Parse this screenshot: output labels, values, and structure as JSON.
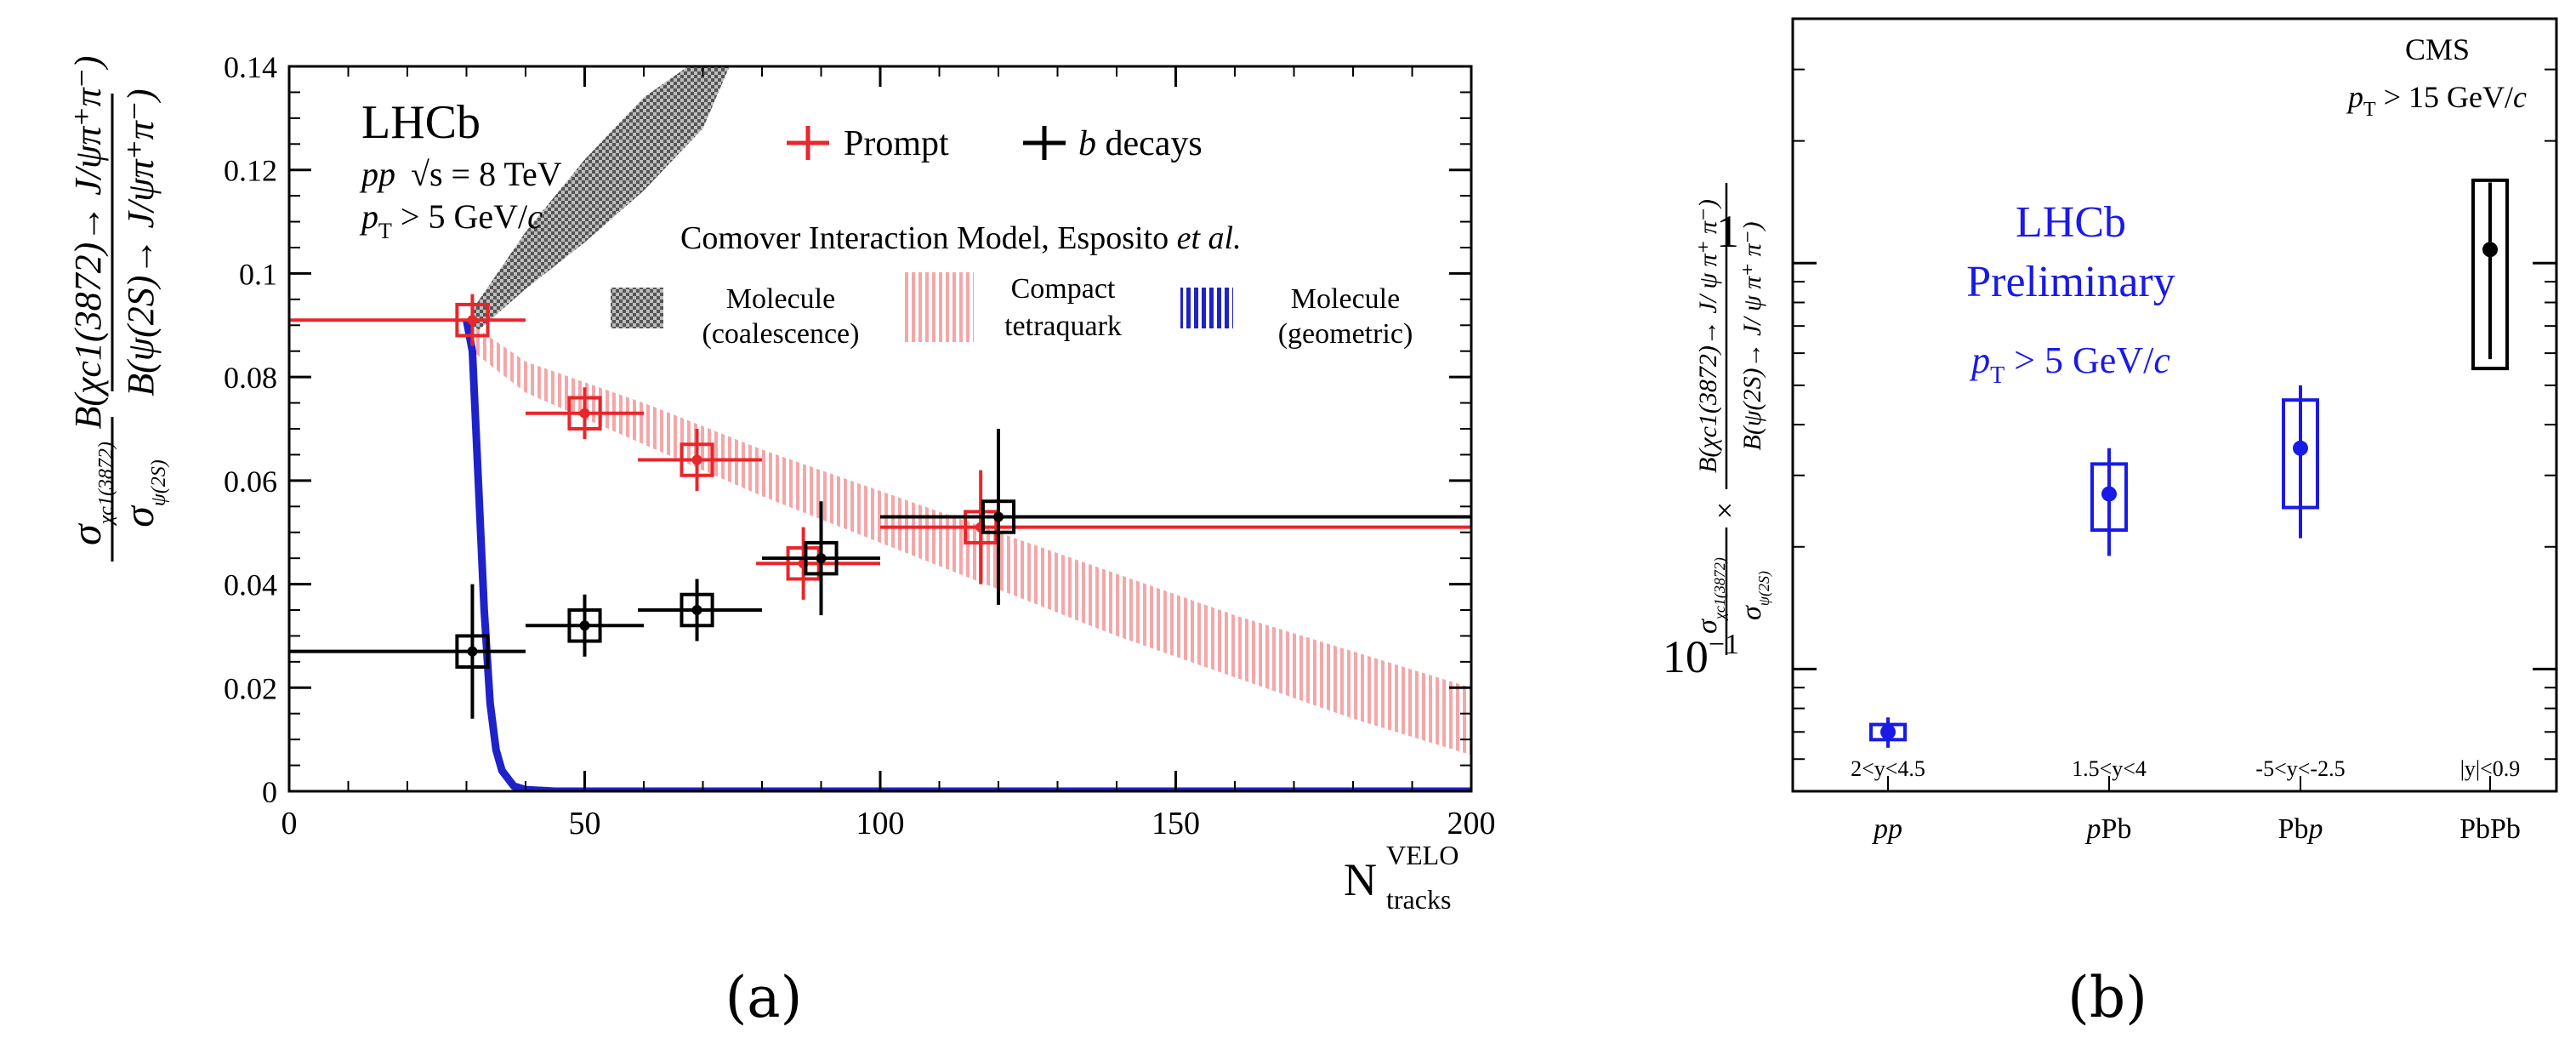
{
  "chart_data": [
    {
      "panel": "a",
      "type": "scatter",
      "experiment": "LHCb",
      "conditions": [
        "pp",
        "√s = 8 TeV",
        "p_T > 5 GeV/c"
      ],
      "title_lines": {
        "experiment": "LHCb",
        "system": "pp",
        "energy": "√s = 8 TeV",
        "pt_prefix": "p",
        "pt_sub": "T",
        "pt_rest": " > 5 GeV/",
        "pt_c": "c"
      },
      "xlabel": "N",
      "xlabel_sup": "VELO",
      "xlabel_sub": "tracks",
      "ylabel_left_num": "σ",
      "ylabel_left_num_sub": "χc1(3872)",
      "ylabel_left_den": "σ",
      "ylabel_left_den_sub": "ψ(2S)",
      "ylabel_right_num": "B(χc1(3872)→ J/ψπ⁺π⁻)",
      "ylabel_right_den": "B(ψ(2S)→ J/ψπ⁺π⁻)",
      "xlim": [
        0,
        200
      ],
      "ylim": [
        0,
        0.14
      ],
      "xticks": [
        0,
        50,
        100,
        150,
        200
      ],
      "xtick_labels": [
        "0",
        "50",
        "100",
        "150",
        "200"
      ],
      "yticks": [
        0,
        0.02,
        0.04,
        0.06,
        0.08,
        0.1,
        0.12,
        0.14
      ],
      "ytick_labels": [
        "0",
        "0.02",
        "0.04",
        "0.06",
        "0.08",
        "0.1",
        "0.12",
        "0.14"
      ],
      "legend": {
        "prompt": "Prompt",
        "bdecays_italic": "b",
        "bdecays_rest": " decays",
        "model_title": "Comover Interaction Model, Esposito ",
        "model_title_italic": "et al.",
        "coalescence_1": "Molecule",
        "coalescence_2": "(coalescence)",
        "tetraquark_1": "Compact",
        "tetraquark_2": "tetraquark",
        "geometric_1": "Molecule",
        "geometric_2": "(geometric)"
      },
      "series": [
        {
          "name": "Prompt",
          "color": "#e8262b",
          "x": [
            31,
            50,
            69,
            87,
            117
          ],
          "xerr_low": [
            31,
            10,
            10,
            8,
            17
          ],
          "xerr_high": [
            9,
            10,
            11,
            13,
            83
          ],
          "y": [
            0.091,
            0.073,
            0.064,
            0.044,
            0.051
          ],
          "yerr_stat": [
            0.005,
            0.005,
            0.006,
            0.007,
            0.011
          ],
          "syst_box": 0.003
        },
        {
          "name": "b decays",
          "color": "#000000",
          "x": [
            31,
            50,
            69,
            90,
            120
          ],
          "xerr_low": [
            31,
            10,
            10,
            10,
            20
          ],
          "xerr_high": [
            9,
            10,
            11,
            10,
            80
          ],
          "y": [
            0.027,
            0.032,
            0.035,
            0.045,
            0.053
          ],
          "yerr_stat": [
            0.013,
            0.006,
            0.006,
            0.011,
            0.017
          ],
          "syst_box": 0.003
        }
      ],
      "bands": [
        {
          "name": "Molecule (coalescence)",
          "color": "#777777",
          "x": [
            31,
            40,
            50,
            60,
            70,
            76
          ],
          "upper": [
            0.093,
            0.108,
            0.122,
            0.134,
            0.142,
            0.144
          ],
          "lower": [
            0.088,
            0.097,
            0.106,
            0.116,
            0.128,
            0.144
          ]
        },
        {
          "name": "Compact tetraquark",
          "color": "#f4a7a9",
          "x": [
            31,
            40,
            60,
            80,
            100,
            120,
            140,
            160,
            180,
            200
          ],
          "upper": [
            0.09,
            0.083,
            0.075,
            0.066,
            0.058,
            0.05,
            0.042,
            0.034,
            0.027,
            0.02
          ],
          "lower": [
            0.085,
            0.077,
            0.067,
            0.057,
            0.048,
            0.039,
            0.03,
            0.022,
            0.014,
            0.007
          ]
        },
        {
          "name": "Molecule (geometric)",
          "color": "#1e22c8",
          "x": [
            30,
            31,
            32,
            33,
            34,
            35,
            36,
            38,
            40,
            45,
            200
          ],
          "y": [
            0.091,
            0.085,
            0.06,
            0.035,
            0.017,
            0.008,
            0.004,
            0.001,
            0.0003,
            0,
            0
          ]
        }
      ]
    },
    {
      "panel": "b",
      "type": "scatter",
      "yscale": "log",
      "ylim": [
        0.05,
        4.0
      ],
      "ytick_labels": {
        "one": "1",
        "tenth_base": "10",
        "tenth_exp": "−1"
      },
      "ylabel_left_num": "σ",
      "ylabel_left_num_sub": "χc1(3872)",
      "ylabel_left_den": "σ",
      "ylabel_left_den_sub": "ψ(2S)",
      "ylabel_right_num": "B(χc1(3872)→ J/ ψ π⁺ π⁻)",
      "ylabel_right_den": "B(ψ(2S)→ J/ ψ π⁺ π⁻)",
      "times": "×",
      "lhcb_label_1": "LHCb",
      "lhcb_label_2": "Preliminary",
      "lhcb_pt_prefix": "p",
      "lhcb_pt_sub": "T",
      "lhcb_pt_rest": " > 5 GeV/",
      "lhcb_pt_c": "c",
      "cms_label": "CMS",
      "cms_pt_prefix": "p",
      "cms_pt_sub": "T",
      "cms_pt_rest": " > 15 GeV/",
      "cms_pt_c": "c",
      "categories": [
        "pp",
        "pPb",
        "Pbp",
        "PbPb"
      ],
      "category_labels": [
        {
          "a": "",
          "ai": "pp",
          "b": ""
        },
        {
          "a": "",
          "ai": "p",
          "b": "Pb"
        },
        {
          "a": "Pb",
          "ai": "p",
          "b": ""
        },
        {
          "a": "PbPb",
          "ai": "",
          "b": ""
        }
      ],
      "rapidity_ranges": [
        "2<y<4.5",
        "1.5<y<4",
        "-5<y<-2.5",
        "|y|<0.9"
      ],
      "points": [
        {
          "category": "pp",
          "experiment": "LHCb",
          "color": "#1a1ae6",
          "value": 0.07,
          "stat_low": 0.064,
          "stat_high": 0.076,
          "syst_low": 0.067,
          "syst_high": 0.073
        },
        {
          "category": "pPb",
          "experiment": "LHCb",
          "color": "#1a1ae6",
          "value": 0.27,
          "stat_low": 0.19,
          "stat_high": 0.35,
          "syst_low": 0.22,
          "syst_high": 0.32
        },
        {
          "category": "Pbp",
          "experiment": "LHCb",
          "color": "#1a1ae6",
          "value": 0.35,
          "stat_low": 0.21,
          "stat_high": 0.5,
          "syst_low": 0.25,
          "syst_high": 0.46
        },
        {
          "category": "PbPb",
          "experiment": "CMS",
          "color": "#000000",
          "value": 1.08,
          "stat_low": 0.58,
          "stat_high": 1.58,
          "syst_low": 0.55,
          "syst_high": 1.6
        }
      ]
    }
  ],
  "panel_labels": [
    "(a)",
    "(b)"
  ],
  "colors": {
    "prompt": "#e8262b",
    "bdecays": "#000000",
    "lhcb_blue": "#1a1ae6",
    "cms": "#000000",
    "tetraquark": "#f4a7a9",
    "coalescence": "#777777",
    "geometric": "#1e22c8"
  }
}
